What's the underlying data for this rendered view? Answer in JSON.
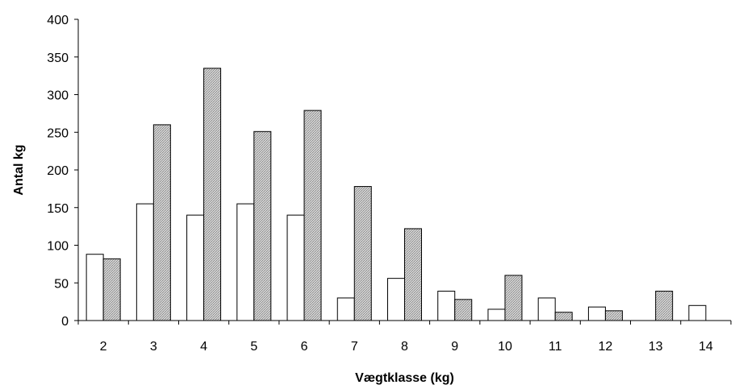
{
  "chart_data": {
    "type": "bar",
    "title": "",
    "xlabel": "Vægtklasse (kg)",
    "ylabel": "Antal kg",
    "ylim": [
      0,
      400
    ],
    "yticks": [
      0,
      50,
      100,
      150,
      200,
      250,
      300,
      350,
      400
    ],
    "categories": [
      "2",
      "3",
      "4",
      "5",
      "6",
      "7",
      "8",
      "9",
      "10",
      "11",
      "12",
      "13",
      "14"
    ],
    "series": [
      {
        "values": [
          88,
          155,
          140,
          155,
          140,
          30,
          56,
          39,
          15,
          30,
          18,
          0,
          20
        ],
        "color": "#ffffff"
      },
      {
        "values": [
          82,
          260,
          335,
          251,
          279,
          178,
          122,
          28,
          60,
          11,
          13,
          39,
          0
        ],
        "color": "#c8c8c8"
      }
    ],
    "grid": false,
    "legend": "none"
  }
}
